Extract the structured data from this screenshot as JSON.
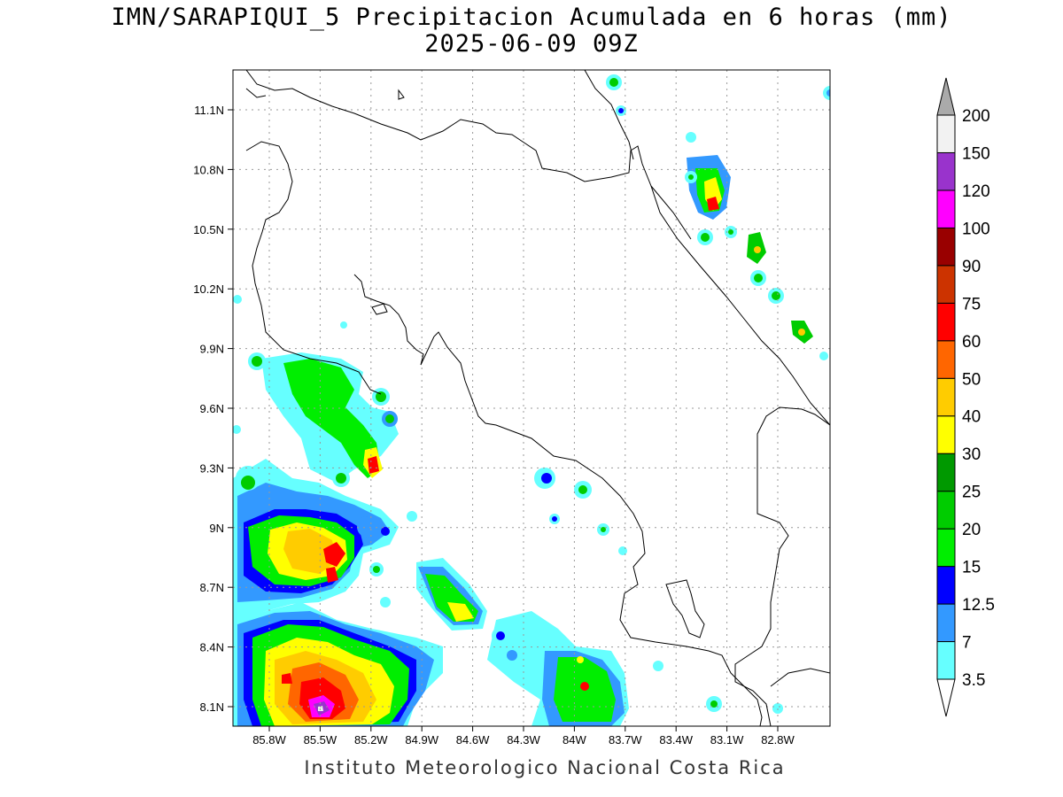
{
  "title_line1": "IMN/SARAPIQUI_5 Precipitacion Acumulada en 6 horas (mm)",
  "title_line2": "2025-06-09 09Z",
  "footer": "Instituto Meteorologico Nacional Costa Rica",
  "lat_labels": [
    "11.1N",
    "10.8N",
    "10.5N",
    "10.2N",
    "9.9N",
    "9.6N",
    "9.3N",
    "9N",
    "8.7N",
    "8.4N",
    "8.1N"
  ],
  "lon_labels": [
    "85.8W",
    "85.5W",
    "85.2W",
    "84.9W",
    "84.6W",
    "84.3W",
    "84W",
    "83.7W",
    "83.4W",
    "83.1W",
    "82.8W"
  ],
  "colorbar": {
    "labels": [
      "3.5",
      "7",
      "12.5",
      "15",
      "20",
      "25",
      "30",
      "40",
      "50",
      "60",
      "75",
      "90",
      "100",
      "120",
      "150",
      "200"
    ],
    "colors": [
      "#66ffff",
      "#3399ff",
      "#0000ff",
      "#00ee00",
      "#00cc00",
      "#009900",
      "#ffff00",
      "#ffcc00",
      "#ff6600",
      "#ff0000",
      "#cc3300",
      "#990000",
      "#ff00ff",
      "#9933cc",
      "#f2f2f2",
      "#aaaaaa"
    ]
  }
}
